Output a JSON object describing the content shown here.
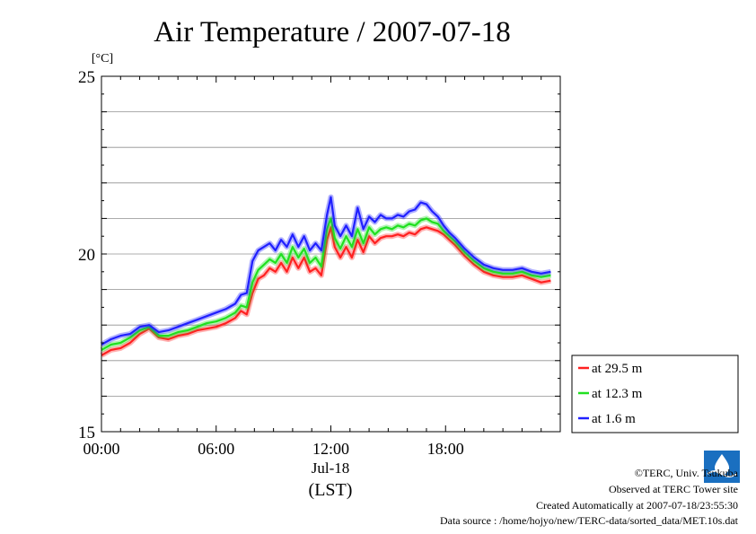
{
  "chart_data": {
    "type": "line",
    "title": "Air Temperature / 2007-07-18",
    "yunit": "[°C]",
    "ylim": [
      15,
      25
    ],
    "yticks": [
      15,
      20,
      25
    ],
    "xlim": [
      0,
      24
    ],
    "xticks": [
      {
        "x": 0,
        "label": "00:00"
      },
      {
        "x": 6,
        "label": "06:00"
      },
      {
        "x": 12,
        "label": "12:00"
      },
      {
        "x": 18,
        "label": "18:00"
      }
    ],
    "date_label": "Jul-18",
    "time_zone_label": "(LST)",
    "grid": true,
    "legend_position": "right-bottom",
    "x": [
      0.0,
      0.5,
      1.0,
      1.5,
      2.0,
      2.5,
      3.0,
      3.5,
      4.0,
      4.5,
      5.0,
      5.5,
      6.0,
      6.5,
      7.0,
      7.3,
      7.6,
      7.9,
      8.2,
      8.5,
      8.8,
      9.1,
      9.4,
      9.7,
      10.0,
      10.3,
      10.6,
      10.9,
      11.2,
      11.5,
      11.8,
      12.0,
      12.2,
      12.5,
      12.8,
      13.1,
      13.4,
      13.7,
      14.0,
      14.3,
      14.6,
      14.9,
      15.2,
      15.5,
      15.8,
      16.1,
      16.4,
      16.7,
      17.0,
      17.3,
      17.6,
      17.9,
      18.2,
      18.5,
      19.0,
      19.5,
      20.0,
      20.5,
      21.0,
      21.5,
      22.0,
      22.5,
      23.0,
      23.5
    ],
    "series": [
      {
        "name": "at 29.5 m",
        "color": "#ff2020",
        "values": [
          17.15,
          17.3,
          17.35,
          17.5,
          17.75,
          17.9,
          17.65,
          17.6,
          17.7,
          17.75,
          17.85,
          17.9,
          17.95,
          18.05,
          18.2,
          18.4,
          18.3,
          18.9,
          19.3,
          19.4,
          19.6,
          19.5,
          19.75,
          19.5,
          19.9,
          19.6,
          19.9,
          19.5,
          19.6,
          19.4,
          20.4,
          20.75,
          20.2,
          19.9,
          20.2,
          19.9,
          20.4,
          20.05,
          20.5,
          20.3,
          20.45,
          20.5,
          20.5,
          20.55,
          20.5,
          20.6,
          20.55,
          20.7,
          20.75,
          20.7,
          20.65,
          20.55,
          20.4,
          20.25,
          19.95,
          19.7,
          19.5,
          19.4,
          19.35,
          19.35,
          19.4,
          19.3,
          19.2,
          19.25
        ]
      },
      {
        "name": "at 12.3 m",
        "color": "#20e020",
        "values": [
          17.3,
          17.45,
          17.5,
          17.65,
          17.85,
          17.95,
          17.7,
          17.7,
          17.8,
          17.85,
          17.95,
          18.05,
          18.1,
          18.2,
          18.35,
          18.55,
          18.5,
          19.2,
          19.55,
          19.7,
          19.85,
          19.75,
          20.0,
          19.75,
          20.2,
          19.9,
          20.15,
          19.75,
          19.9,
          19.65,
          20.7,
          21.0,
          20.45,
          20.15,
          20.5,
          20.2,
          20.7,
          20.3,
          20.75,
          20.55,
          20.7,
          20.75,
          20.7,
          20.8,
          20.75,
          20.85,
          20.8,
          20.95,
          21.0,
          20.9,
          20.85,
          20.65,
          20.5,
          20.35,
          20.05,
          19.8,
          19.6,
          19.5,
          19.45,
          19.45,
          19.5,
          19.4,
          19.35,
          19.4
        ]
      },
      {
        "name": "at 1.6 m",
        "color": "#2020ff",
        "values": [
          17.45,
          17.6,
          17.7,
          17.75,
          17.95,
          18.0,
          17.8,
          17.85,
          17.95,
          18.05,
          18.15,
          18.25,
          18.35,
          18.45,
          18.6,
          18.85,
          18.9,
          19.8,
          20.1,
          20.2,
          20.3,
          20.1,
          20.4,
          20.2,
          20.55,
          20.2,
          20.5,
          20.1,
          20.3,
          20.1,
          21.1,
          21.6,
          20.8,
          20.5,
          20.8,
          20.5,
          21.3,
          20.7,
          21.05,
          20.9,
          21.1,
          21.0,
          21.0,
          21.1,
          21.05,
          21.2,
          21.25,
          21.45,
          21.4,
          21.2,
          21.05,
          20.8,
          20.6,
          20.45,
          20.15,
          19.9,
          19.7,
          19.6,
          19.55,
          19.55,
          19.6,
          19.5,
          19.45,
          19.5
        ]
      }
    ]
  },
  "footer": {
    "copyright": "©TERC, Univ. Tsukuba",
    "observed": "Observed at TERC Tower site",
    "created": "Created Automatically at 2007-07-18/23:55:30",
    "source": "Data source : /home/hojyo/new/TERC-data/sorted_data/MET.10s.dat"
  },
  "logo_text": "TERC",
  "colors": {
    "grid": "#909090",
    "axis": "#000000"
  }
}
